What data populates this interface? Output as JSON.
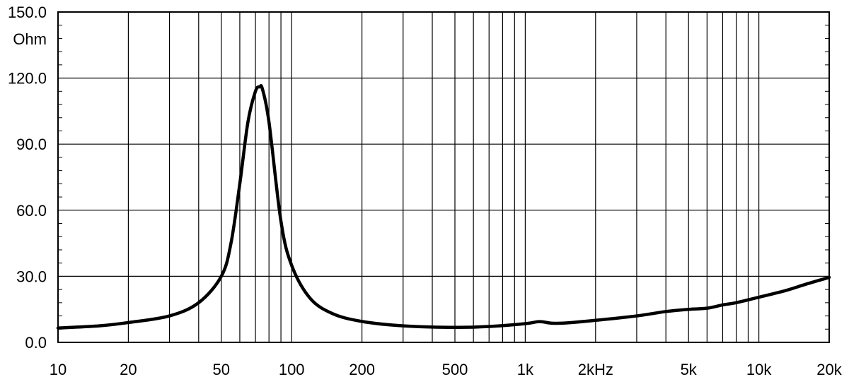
{
  "chart_data": {
    "type": "line",
    "title": "",
    "xlabel": "",
    "ylabel": "Ohm",
    "x_scale": "log",
    "xlim": [
      10,
      20000
    ],
    "ylim": [
      0,
      150
    ],
    "grid": true,
    "x_ticks": [
      {
        "value": 10,
        "label": "10"
      },
      {
        "value": 20,
        "label": "20"
      },
      {
        "value": 50,
        "label": "50"
      },
      {
        "value": 100,
        "label": "100"
      },
      {
        "value": 200,
        "label": "200"
      },
      {
        "value": 500,
        "label": "500"
      },
      {
        "value": 1000,
        "label": "1k"
      },
      {
        "value": 2000,
        "label": "2kHz"
      },
      {
        "value": 5000,
        "label": "5k"
      },
      {
        "value": 10000,
        "label": "10k"
      },
      {
        "value": 20000,
        "label": "20k"
      }
    ],
    "y_ticks": [
      {
        "value": 0,
        "label": "0.0"
      },
      {
        "value": 30,
        "label": "30.0"
      },
      {
        "value": 60,
        "label": "60.0"
      },
      {
        "value": 90,
        "label": "90.0"
      },
      {
        "value": 120,
        "label": "120.0"
      },
      {
        "value": 150,
        "label": "150.0"
      }
    ],
    "series": [
      {
        "color": "#000000",
        "x": [
          10,
          15,
          20,
          30,
          40,
          50,
          55,
          60,
          65,
          70,
          73,
          75,
          80,
          90,
          100,
          120,
          150,
          200,
          300,
          500,
          700,
          1000,
          1150,
          1300,
          1500,
          2000,
          3000,
          4000,
          5000,
          6000,
          7000,
          8000,
          10000,
          13000,
          16000,
          20000
        ],
        "y": [
          6.5,
          7.5,
          9,
          12,
          18,
          30,
          45,
          72,
          100,
          114,
          116,
          115,
          100,
          55,
          35,
          20,
          13,
          9.5,
          7.5,
          6.8,
          7.2,
          8.5,
          9.4,
          8.7,
          8.8,
          10,
          12,
          14,
          15,
          15.5,
          17,
          18,
          20.5,
          23.5,
          26.5,
          29.5
        ]
      }
    ]
  }
}
